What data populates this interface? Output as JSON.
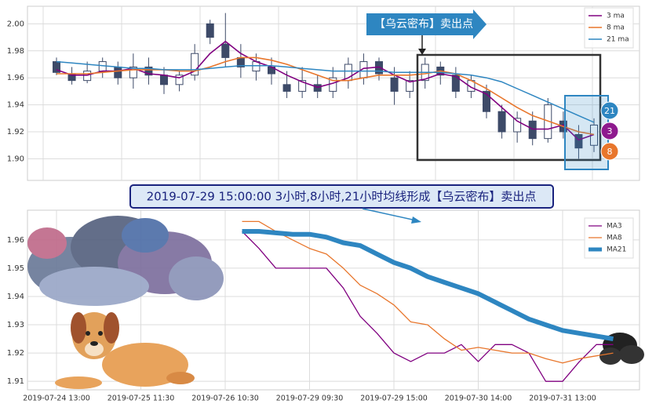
{
  "chart_data": [
    {
      "type": "candlestick",
      "annotation": "【乌云密布】卖出点",
      "end_labels": [
        "21",
        "3",
        "8"
      ],
      "categories": [
        null,
        null,
        null,
        null,
        null,
        null,
        null,
        null,
        null,
        null,
        null,
        null,
        null,
        null,
        null,
        null,
        null,
        null,
        null,
        null,
        null,
        null,
        null,
        null,
        null,
        null,
        null,
        null,
        null,
        null,
        null,
        null,
        null,
        null,
        null,
        null
      ],
      "open": [
        1.972,
        1.963,
        1.958,
        1.965,
        1.968,
        1.96,
        1.968,
        1.962,
        1.955,
        1.962,
        2.0,
        1.985,
        1.975,
        1.965,
        1.968,
        1.955,
        1.95,
        1.955,
        1.95,
        1.958,
        1.96,
        1.972,
        1.96,
        1.95,
        1.958,
        1.968,
        1.962,
        1.95,
        1.95,
        1.935,
        1.92,
        1.928,
        1.915,
        1.928,
        1.918,
        1.91
      ],
      "high": [
        1.975,
        1.968,
        1.972,
        1.975,
        1.972,
        1.978,
        1.975,
        1.968,
        1.965,
        1.985,
        2.003,
        2.008,
        1.985,
        1.978,
        1.975,
        1.965,
        1.968,
        1.962,
        1.968,
        1.975,
        1.978,
        1.975,
        1.968,
        1.965,
        1.975,
        1.972,
        1.968,
        1.962,
        1.955,
        1.94,
        1.935,
        1.935,
        1.945,
        1.935,
        1.925,
        1.93
      ],
      "low": [
        1.962,
        1.955,
        1.956,
        1.96,
        1.955,
        1.952,
        1.955,
        1.948,
        1.95,
        1.958,
        1.985,
        1.968,
        1.96,
        1.958,
        1.955,
        1.945,
        1.945,
        1.945,
        1.945,
        1.952,
        1.955,
        1.958,
        1.94,
        1.945,
        1.952,
        1.955,
        1.945,
        1.945,
        1.93,
        1.915,
        1.912,
        1.91,
        1.912,
        1.915,
        1.9,
        1.905
      ],
      "close": [
        1.964,
        1.958,
        1.965,
        1.972,
        1.96,
        1.968,
        1.962,
        1.955,
        1.962,
        1.978,
        1.99,
        1.975,
        1.968,
        1.972,
        1.963,
        1.95,
        1.958,
        1.95,
        1.96,
        1.97,
        1.972,
        1.963,
        1.95,
        1.958,
        1.97,
        1.962,
        1.95,
        1.958,
        1.935,
        1.92,
        1.93,
        1.915,
        1.94,
        1.92,
        1.908,
        1.925
      ],
      "series": [
        {
          "name": "3 ma",
          "color": "#800080",
          "values": [
            1.966,
            1.962,
            1.962,
            1.965,
            1.965,
            1.967,
            1.963,
            1.962,
            1.96,
            1.965,
            1.978,
            1.987,
            1.978,
            1.972,
            1.968,
            1.962,
            1.957,
            1.953,
            1.956,
            1.96,
            1.967,
            1.968,
            1.962,
            1.957,
            1.959,
            1.963,
            1.961,
            1.953,
            1.948,
            1.938,
            1.928,
            1.922,
            1.922,
            1.925,
            1.914,
            1.918
          ]
        },
        {
          "name": "8 ma",
          "color": "#e8762c",
          "values": [
            1.963,
            1.963,
            1.963,
            1.964,
            1.965,
            1.966,
            1.966,
            1.966,
            1.965,
            1.965,
            1.968,
            1.972,
            1.975,
            1.975,
            1.973,
            1.97,
            1.966,
            1.962,
            1.958,
            1.958,
            1.96,
            1.962,
            1.962,
            1.962,
            1.963,
            1.965,
            1.963,
            1.958,
            1.952,
            1.945,
            1.938,
            1.932,
            1.928,
            1.924,
            1.92,
            1.918
          ]
        },
        {
          "name": "21 ma",
          "color": "#2e86c1",
          "values": [
            1.972,
            1.971,
            1.97,
            1.969,
            1.968,
            1.967,
            1.967,
            1.966,
            1.966,
            1.966,
            1.967,
            1.968,
            1.969,
            1.969,
            1.969,
            1.968,
            1.967,
            1.966,
            1.965,
            1.965,
            1.965,
            1.965,
            1.964,
            1.964,
            1.964,
            1.964,
            1.963,
            1.962,
            1.96,
            1.957,
            1.952,
            1.947,
            1.942,
            1.937,
            1.932,
            1.927
          ]
        }
      ],
      "ylim": [
        1.884,
        2.013
      ],
      "yticks": [
        {
          "value": 1.9,
          "label": "1.90"
        },
        {
          "value": 1.92,
          "label": "1.92"
        },
        {
          "value": 1.94,
          "label": "1.94"
        },
        {
          "value": 1.96,
          "label": "1.96"
        },
        {
          "value": 1.98,
          "label": "1.98"
        },
        {
          "value": 2.0,
          "label": "2.00"
        }
      ],
      "grid": true,
      "legend": "upper right"
    },
    {
      "type": "line",
      "annotation": "2019-07-29 15:00:00 3小时,8小时,21小时均线形成【乌云密布】卖出点",
      "categories": [
        "2019-07-24 13:00",
        null,
        null,
        null,
        null,
        "2019-07-25 11:30",
        null,
        null,
        null,
        null,
        "2019-07-26 10:30",
        null,
        null,
        null,
        null,
        "2019-07-29 09:30",
        null,
        null,
        null,
        null,
        "2019-07-29 15:00",
        null,
        null,
        null,
        null,
        "2019-07-30 14:00",
        null,
        null,
        null,
        null,
        "2019-07-31 13:00",
        null,
        null,
        null,
        null
      ],
      "series": [
        {
          "name": "MA3",
          "color": "#800080",
          "values": [
            null,
            null,
            null,
            null,
            null,
            null,
            null,
            null,
            null,
            null,
            null,
            1.963,
            1.957,
            1.95,
            1.95,
            1.95,
            1.95,
            1.943,
            1.933,
            1.927,
            1.92,
            1.917,
            1.92,
            1.92,
            1.923,
            1.917,
            1.923,
            1.923,
            1.92,
            1.91,
            1.91,
            1.917,
            1.923,
            1.923,
            null
          ]
        },
        {
          "name": "MA8",
          "color": "#e8762c",
          "values": [
            null,
            null,
            null,
            null,
            null,
            null,
            null,
            null,
            null,
            null,
            null,
            1.9665,
            1.9665,
            1.963,
            1.96,
            1.957,
            1.955,
            1.95,
            1.944,
            1.941,
            1.937,
            1.931,
            1.93,
            1.925,
            1.921,
            1.922,
            1.921,
            1.92,
            1.92,
            1.918,
            1.9165,
            1.918,
            1.919,
            1.92,
            null
          ]
        },
        {
          "name": "MA21",
          "color": "#2e86c1",
          "values": [
            null,
            null,
            null,
            null,
            null,
            null,
            null,
            null,
            null,
            null,
            null,
            1.963,
            1.963,
            1.9625,
            1.962,
            1.962,
            1.961,
            1.959,
            1.958,
            1.955,
            1.952,
            1.95,
            1.947,
            1.945,
            1.943,
            1.941,
            1.938,
            1.935,
            1.932,
            1.93,
            1.928,
            1.927,
            1.926,
            1.925,
            null
          ]
        }
      ],
      "ylim": [
        1.907,
        1.9705
      ],
      "yticks": [
        1.91,
        1.92,
        1.93,
        1.94,
        1.95,
        1.96
      ],
      "grid": true,
      "legend": "upper right"
    }
  ]
}
